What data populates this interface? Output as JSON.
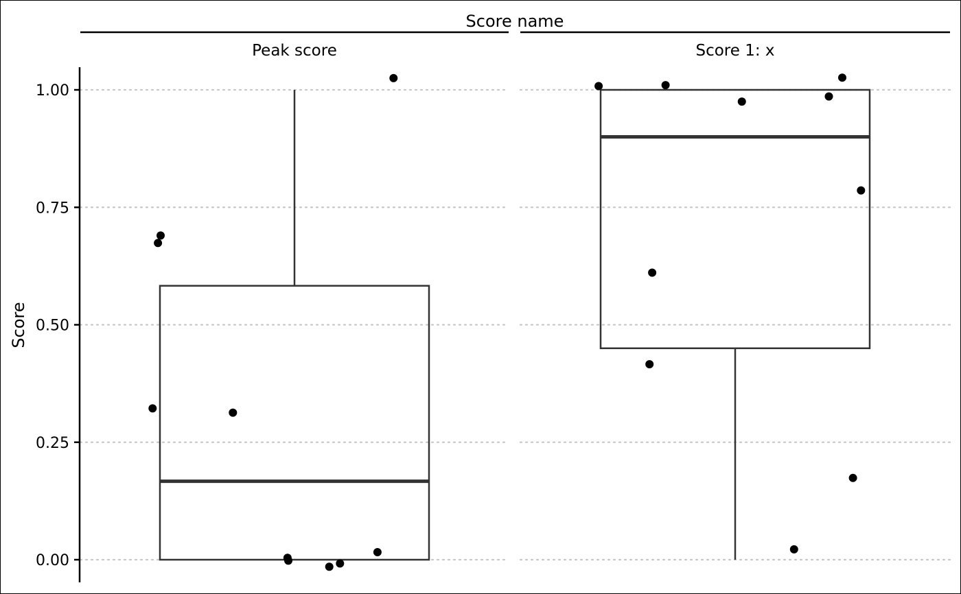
{
  "chart_data": {
    "type": "box",
    "title": "",
    "facet_label": "Score name",
    "ylabel": "Score",
    "xlabel": "",
    "ylim": [
      -0.05,
      1.05
    ],
    "y_ticks": [
      0.0,
      0.25,
      0.5,
      0.75,
      1.0
    ],
    "y_tick_labels": [
      "0.00",
      "0.25",
      "0.50",
      "0.75",
      "1.00"
    ],
    "grid": "horizontal dotted",
    "panels": [
      {
        "name": "Peak score",
        "box": {
          "whisker_low": 0.0,
          "q1": 0.0,
          "median": 0.167,
          "q3": 0.583,
          "whisker_high": 1.0
        },
        "points": [
          {
            "x": -0.53,
            "y": 0.322
          },
          {
            "x": -0.51,
            "y": 0.674
          },
          {
            "x": -0.5,
            "y": 0.69
          },
          {
            "x": -0.23,
            "y": 0.313
          },
          {
            "x": -0.026,
            "y": 0.004
          },
          {
            "x": -0.023,
            "y": -0.002
          },
          {
            "x": 0.13,
            "y": -0.015
          },
          {
            "x": 0.17,
            "y": -0.008
          },
          {
            "x": 0.31,
            "y": 0.016
          },
          {
            "x": 0.37,
            "y": 1.025
          }
        ]
      },
      {
        "name": "Score 1: x",
        "box": {
          "whisker_low": 0.0,
          "q1": 0.45,
          "median": 0.9,
          "q3": 1.0,
          "whisker_high": 1.0
        },
        "points": [
          {
            "x": -0.51,
            "y": 1.008
          },
          {
            "x": -0.32,
            "y": 0.416
          },
          {
            "x": -0.31,
            "y": 0.611
          },
          {
            "x": -0.26,
            "y": 1.01
          },
          {
            "x": 0.025,
            "y": 0.975
          },
          {
            "x": 0.22,
            "y": 0.022
          },
          {
            "x": 0.35,
            "y": 0.986
          },
          {
            "x": 0.4,
            "y": 1.026
          },
          {
            "x": 0.44,
            "y": 0.174
          },
          {
            "x": 0.47,
            "y": 0.786
          }
        ]
      }
    ]
  }
}
